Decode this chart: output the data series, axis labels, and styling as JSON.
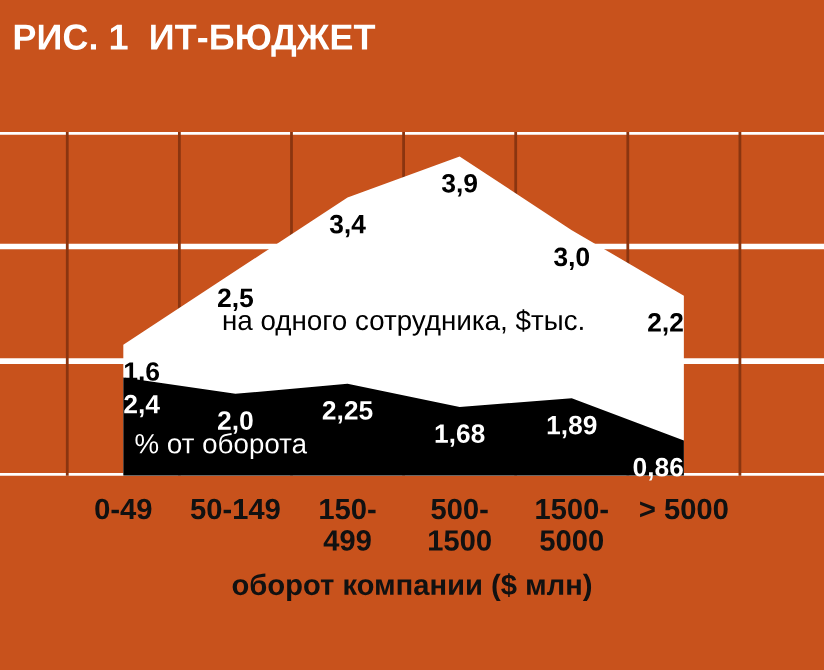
{
  "chart_data": {
    "type": "area",
    "title": "РИС. 1  ИТ-БЮДЖЕТ",
    "xlabel": "оборот компании ($ млн)",
    "categories": [
      "0-49",
      "50-149",
      "150-\n499",
      "500-\n1500",
      "1500-\n5000",
      "> 5000"
    ],
    "series": [
      {
        "name": "на одного сотрудника, $тыс.",
        "color": "#ffffff",
        "values": [
          1.6,
          2.5,
          3.4,
          3.9,
          3.0,
          2.2
        ],
        "value_labels": [
          "1,6",
          "2,5",
          "3,4",
          "3,9",
          "3,0",
          "2,2"
        ]
      },
      {
        "name": "% от оборота",
        "color": "#000000",
        "axis": "y2",
        "values": [
          2.4,
          2.0,
          2.25,
          1.68,
          1.89,
          0.86
        ],
        "value_labels": [
          "2,4",
          "2,0",
          "2,25",
          "1,68",
          "1,89",
          "0,86"
        ]
      }
    ],
    "ylim": [
      0,
      4.2
    ],
    "yticks": [
      {
        "value": 0,
        "label": null
      },
      {
        "value": 1.4,
        "label": null
      },
      {
        "value": 2.8,
        "label": null
      },
      {
        "value": 4.2,
        "label": null
      }
    ],
    "y2lim": [
      0,
      8.4
    ],
    "tick_labels": "x",
    "grid": true,
    "legend": false
  }
}
